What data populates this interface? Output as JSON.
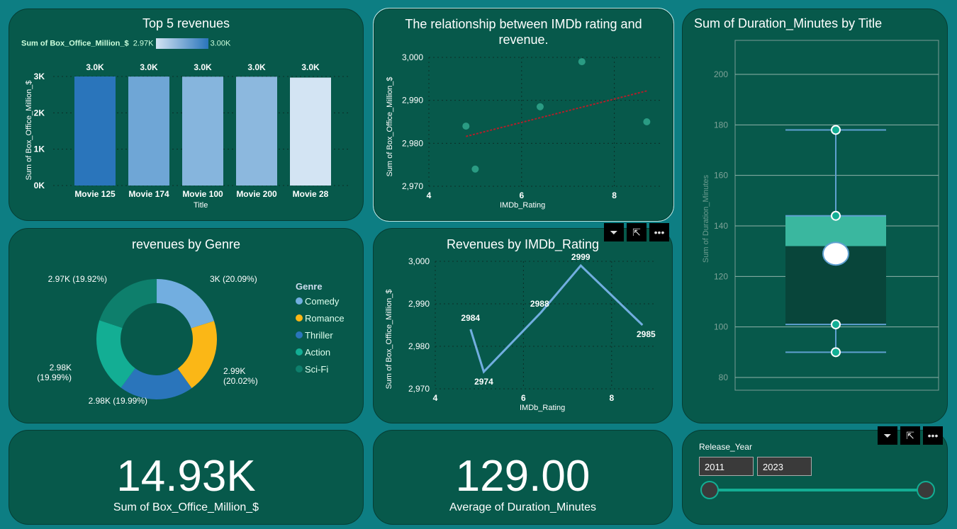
{
  "top5": {
    "title": "Top 5 revenues",
    "legend_label": "Sum of Box_Office_Million_$",
    "legend_min": "2.97K",
    "legend_max": "3.00K",
    "ylabel": "Sum of Box_Office_Million_$",
    "xlabel": "Title"
  },
  "scatter": {
    "title": "The relationship between IMDb rating and revenue.",
    "ylabel": "Sum of Box_Office_Million_$",
    "xlabel": "IMDb_Rating"
  },
  "box": {
    "title": "Sum of Duration_Minutes by Title",
    "ylabel": "Sum of Duration_Minutes"
  },
  "genre": {
    "title": "revenues by Genre",
    "legend_title": "Genre"
  },
  "line": {
    "title": "Revenues by IMDb_Rating",
    "ylabel": "Sum of Box_Office_Million_$",
    "xlabel": "IMDb_Rating"
  },
  "kpi1": {
    "value": "14.93K",
    "label": "Sum of Box_Office_Million_$"
  },
  "kpi2": {
    "value": "129.00",
    "label": "Average of Duration_Minutes"
  },
  "slicer": {
    "title": "Release_Year",
    "from": "2011",
    "to": "2023",
    "range": [
      2011,
      2023
    ]
  },
  "visual_icons": [
    "filter-icon",
    "focus-mode-icon",
    "more-options-icon"
  ],
  "chart_data": [
    {
      "type": "bar",
      "title": "Top 5 revenues",
      "categories": [
        "Movie 125",
        "Movie 174",
        "Movie 100",
        "Movie 200",
        "Movie 28"
      ],
      "values": [
        3000,
        2998,
        2995,
        2994,
        2970
      ],
      "data_labels": [
        "3.0K",
        "3.0K",
        "3.0K",
        "3.0K",
        "3.0K"
      ],
      "colors": [
        "#2a75bb",
        "#6fa6d6",
        "#86b5dd",
        "#8cb8de",
        "#d3e4f3"
      ],
      "yticks": [
        "0K",
        "1K",
        "2K",
        "3K"
      ],
      "ylim": [
        0,
        3000
      ]
    },
    {
      "type": "scatter",
      "title": "The relationship between IMDb rating and revenue.",
      "x": [
        4.8,
        5.0,
        6.4,
        7.3,
        8.7
      ],
      "y": [
        2984,
        2974,
        2988.5,
        2999,
        2985
      ],
      "trend": [
        [
          4.8,
          2981.6
        ],
        [
          8.7,
          2992.2
        ]
      ],
      "xticks": [
        "4",
        "6",
        "8"
      ],
      "yticks": [
        "2,970",
        "2,980",
        "2,990",
        "3,000"
      ],
      "xlim": [
        4,
        9
      ],
      "ylim": [
        2970,
        3000
      ]
    },
    {
      "type": "pie",
      "title": "revenues by Genre",
      "labels": [
        "Comedy",
        "Romance",
        "Thriller",
        "Action",
        "Sci-Fi"
      ],
      "values": [
        3000,
        2990,
        2980,
        2980,
        2970
      ],
      "percents": [
        20.09,
        20.02,
        19.99,
        19.99,
        19.92
      ],
      "data_labels": [
        "3K (20.09%)",
        "2.99K (20.02%)",
        "2.98K (19.99%)",
        "2.98K (19.99%)",
        "2.97K (19.92%)"
      ],
      "colors": [
        "#72aee0",
        "#fbb716",
        "#2a75bb",
        "#13ae94",
        "#0e7f6c"
      ]
    },
    {
      "type": "line",
      "title": "Revenues by IMDb_Rating",
      "x": [
        4.8,
        5.1,
        6.4,
        7.3,
        8.7
      ],
      "y": [
        2984,
        2974,
        2988,
        2999,
        2985
      ],
      "data_labels": [
        "2984",
        "2974",
        "2988",
        "2999",
        "2985"
      ],
      "xticks": [
        "4",
        "6",
        "8"
      ],
      "yticks": [
        "2,970",
        "2,980",
        "2,990",
        "3,000"
      ],
      "xlim": [
        4,
        9
      ],
      "ylim": [
        2970,
        3000
      ]
    },
    {
      "type": "box",
      "title": "Sum of Duration_Minutes by Title",
      "min": 90,
      "q1": 101,
      "median": 132,
      "q3": 144,
      "max": 178,
      "mean": 129,
      "yticks": [
        "80",
        "100",
        "120",
        "140",
        "160",
        "180",
        "200"
      ],
      "ylim": [
        75,
        210
      ]
    }
  ]
}
